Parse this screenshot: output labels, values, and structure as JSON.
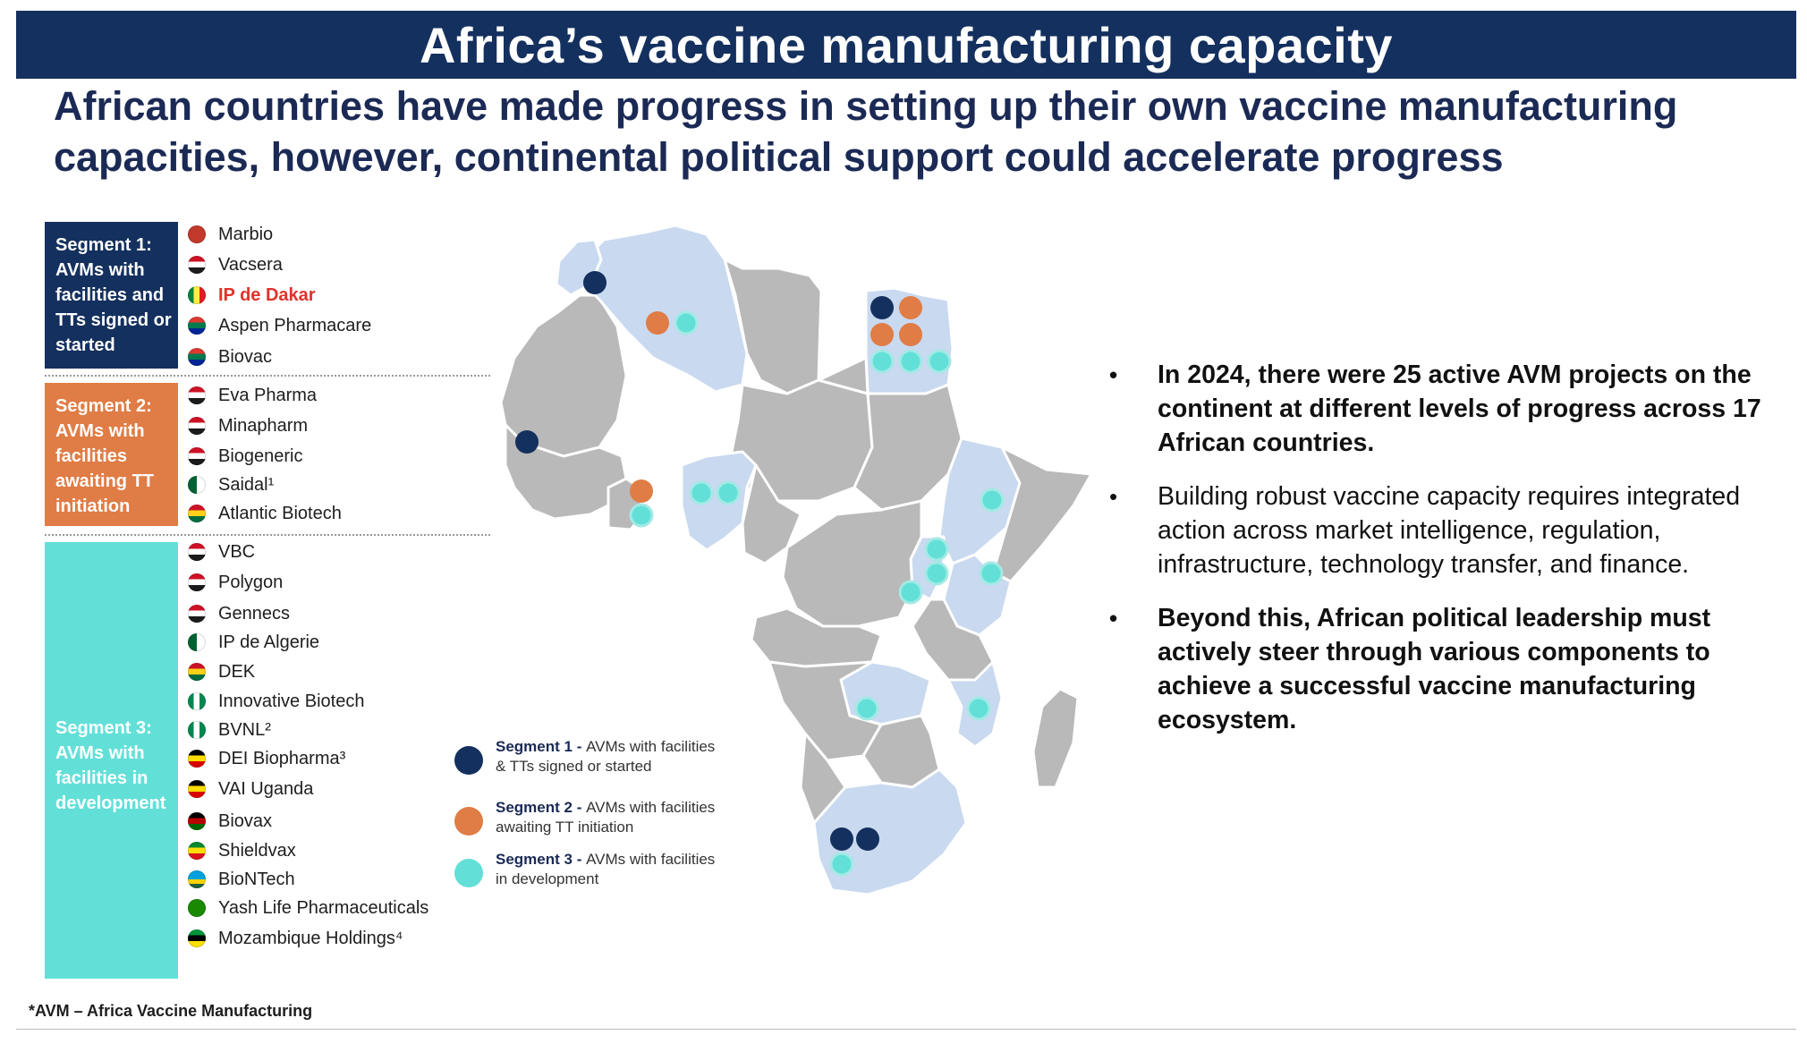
{
  "title": "Africa’s vaccine manufacturing capacity",
  "subtitle": "African countries have made progress in setting up their own vaccine manufacturing capacities, however, continental political support could accelerate progress",
  "segments": [
    {
      "label": "Segment 1: AVMs with facilities and TTs signed or started",
      "color": "#14305e"
    },
    {
      "label": "Segment 2: AVMs with facilities awaiting TT initiation",
      "color": "#e07c45"
    },
    {
      "label": "Segment 3: AVMs with facilities in development",
      "color": "#62e0d8"
    }
  ],
  "companies": [
    {
      "name": "Marbio",
      "flag": "morocco",
      "segment": 1
    },
    {
      "name": "Vacsera",
      "flag": "egypt",
      "segment": 1
    },
    {
      "name": "IP de Dakar",
      "flag": "senegal",
      "segment": 1
    },
    {
      "name": "Aspen Pharmacare",
      "flag": "south-africa",
      "segment": 1
    },
    {
      "name": "Biovac",
      "flag": "south-africa",
      "segment": 1
    },
    {
      "name": "Eva Pharma",
      "flag": "egypt",
      "segment": 2
    },
    {
      "name": "Minapharm",
      "flag": "egypt",
      "segment": 2
    },
    {
      "name": "Biogeneric",
      "flag": "egypt",
      "segment": 2
    },
    {
      "name": "Saidal¹",
      "flag": "algeria",
      "segment": 2
    },
    {
      "name": "Atlantic Biotech",
      "flag": "ghana",
      "segment": 2
    },
    {
      "name": "VBC",
      "flag": "egypt",
      "segment": 3
    },
    {
      "name": "Polygon",
      "flag": "egypt",
      "segment": 3
    },
    {
      "name": "Gennecs",
      "flag": "egypt",
      "segment": 3
    },
    {
      "name": "IP de Algerie",
      "flag": "algeria",
      "segment": 3
    },
    {
      "name": "DEK",
      "flag": "ghana",
      "segment": 3
    },
    {
      "name": "Innovative Biotech",
      "flag": "nigeria",
      "segment": 3
    },
    {
      "name": "BVNL²",
      "flag": "nigeria",
      "segment": 3
    },
    {
      "name": "DEI Biopharma³",
      "flag": "uganda",
      "segment": 3
    },
    {
      "name": "VAI Uganda",
      "flag": "uganda",
      "segment": 3
    },
    {
      "name": "Biovax",
      "flag": "kenya",
      "segment": 3
    },
    {
      "name": "Shieldvax",
      "flag": "ethiopia",
      "segment": 3
    },
    {
      "name": "BioNTech",
      "flag": "rwanda",
      "segment": 3
    },
    {
      "name": "Yash Life Pharmaceuticals",
      "flag": "zambia",
      "segment": 3
    },
    {
      "name": "Mozambique Holdings⁴",
      "flag": "mozambique",
      "segment": 3
    }
  ],
  "legend": [
    {
      "title": "Segment 1 - ",
      "text": "AVMs with facilities & TTs signed or started",
      "color": "#14305e"
    },
    {
      "title": "Segment 2 - ",
      "text": "AVMs with facilities awaiting TT initiation",
      "color": "#e07c45"
    },
    {
      "title": "Segment 3 - ",
      "text": "AVMs with facilities in development",
      "color": "#62e0d8"
    }
  ],
  "bullets": [
    {
      "text": "In 2024, there were 25 active AVM projects on the continent at different levels of progress across 17 African countries.",
      "bold": true
    },
    {
      "text": "Building robust vaccine capacity requires integrated action across market intelligence, regulation, infrastructure, technology transfer, and finance.",
      "bold": false
    },
    {
      "text": "Beyond this, African political leadership must actively steer through various components to achieve a successful vaccine manufacturing ecosystem.",
      "bold": true
    }
  ],
  "footnote": "*AVM – Africa Vaccine Manufacturing",
  "colors": {
    "navy": "#14305e",
    "orange": "#e07c45",
    "cyan": "#62e0d8",
    "map_grey": "#b9b9b9",
    "map_highlight": "#c9d9ef",
    "highlight_text": "#e0312b"
  }
}
